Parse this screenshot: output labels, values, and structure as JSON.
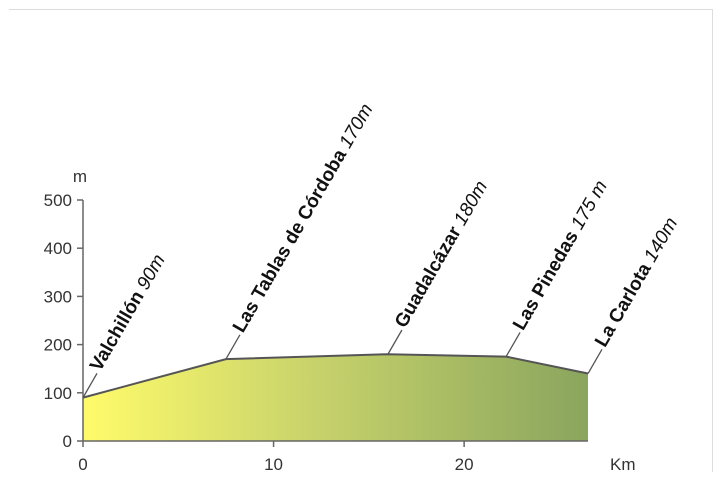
{
  "chart_data": {
    "type": "area",
    "title": "",
    "xlabel": "Km",
    "ylabel": "m",
    "xlim": [
      0,
      26.5
    ],
    "ylim": [
      0,
      500
    ],
    "x_ticks": [
      "0",
      "10",
      "20"
    ],
    "x_tick_values": [
      0,
      10,
      20
    ],
    "y_ticks": [
      "0",
      "100",
      "200",
      "300",
      "400",
      "500"
    ],
    "y_tick_values": [
      0,
      100,
      200,
      300,
      400,
      500
    ],
    "x": [
      0,
      7.5,
      16,
      22.2,
      26.5
    ],
    "y": [
      90,
      170,
      180,
      175,
      140
    ],
    "grid": false,
    "legend": "none",
    "fill_gradient": [
      "#fffb6b",
      "#8aa55e"
    ],
    "waypoints": [
      {
        "name": "Valchillón",
        "altitude": "90m",
        "km": 0,
        "m": 90
      },
      {
        "name": "Las Tablas de Córdoba",
        "altitude": "170m",
        "km": 7.5,
        "m": 170
      },
      {
        "name": "Guadalcázar",
        "altitude": "180m",
        "km": 16,
        "m": 180
      },
      {
        "name": "Las Pinedas",
        "altitude": "175 m",
        "km": 22.2,
        "m": 175
      },
      {
        "name": "La Carlota",
        "altitude": "140m",
        "km": 26.5,
        "m": 140
      }
    ]
  }
}
